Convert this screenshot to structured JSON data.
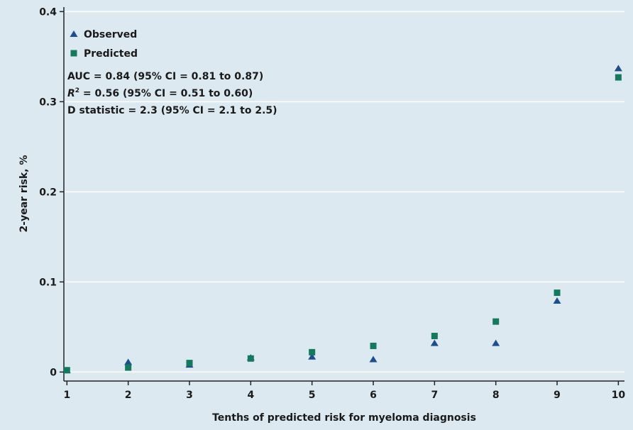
{
  "chart_data": {
    "type": "scatter",
    "title": "",
    "xlabel": "Tenths of predicted risk for myeloma diagnosis",
    "ylabel": "2-year risk, %",
    "xlim": [
      0.95,
      10.1
    ],
    "ylim": [
      -0.01,
      0.405
    ],
    "x_ticks": [
      1,
      2,
      3,
      4,
      5,
      6,
      7,
      8,
      9,
      10
    ],
    "y_ticks": [
      0,
      0.1,
      0.2,
      0.3,
      0.4
    ],
    "y_tick_labels": [
      "0",
      "0.1",
      "0.2",
      "0.3",
      "0.4"
    ],
    "grid": "horizontal",
    "legend_position": "top-left",
    "x": [
      1,
      2,
      3,
      4,
      5,
      6,
      7,
      8,
      9,
      10
    ],
    "series": [
      {
        "name": "Observed",
        "marker": "triangle",
        "color": "#1f4e8c",
        "values": [
          0.002,
          0.011,
          0.008,
          0.016,
          0.017,
          0.014,
          0.032,
          0.032,
          0.079,
          0.337
        ]
      },
      {
        "name": "Predicted",
        "marker": "square",
        "color": "#137a5e",
        "values": [
          0.002,
          0.005,
          0.01,
          0.015,
          0.022,
          0.029,
          0.04,
          0.056,
          0.088,
          0.327
        ]
      }
    ],
    "annotations": [
      "AUC = 0.84 (95% CI = 0.81 to 0.87)",
      "D statistic = 2.3 (95% CI = 2.1 to 2.5)"
    ],
    "r2_annotation": {
      "symbol": "R",
      "superscript": "2",
      "text": " = 0.56 (95% CI = 0.51 to 0.60)"
    }
  }
}
